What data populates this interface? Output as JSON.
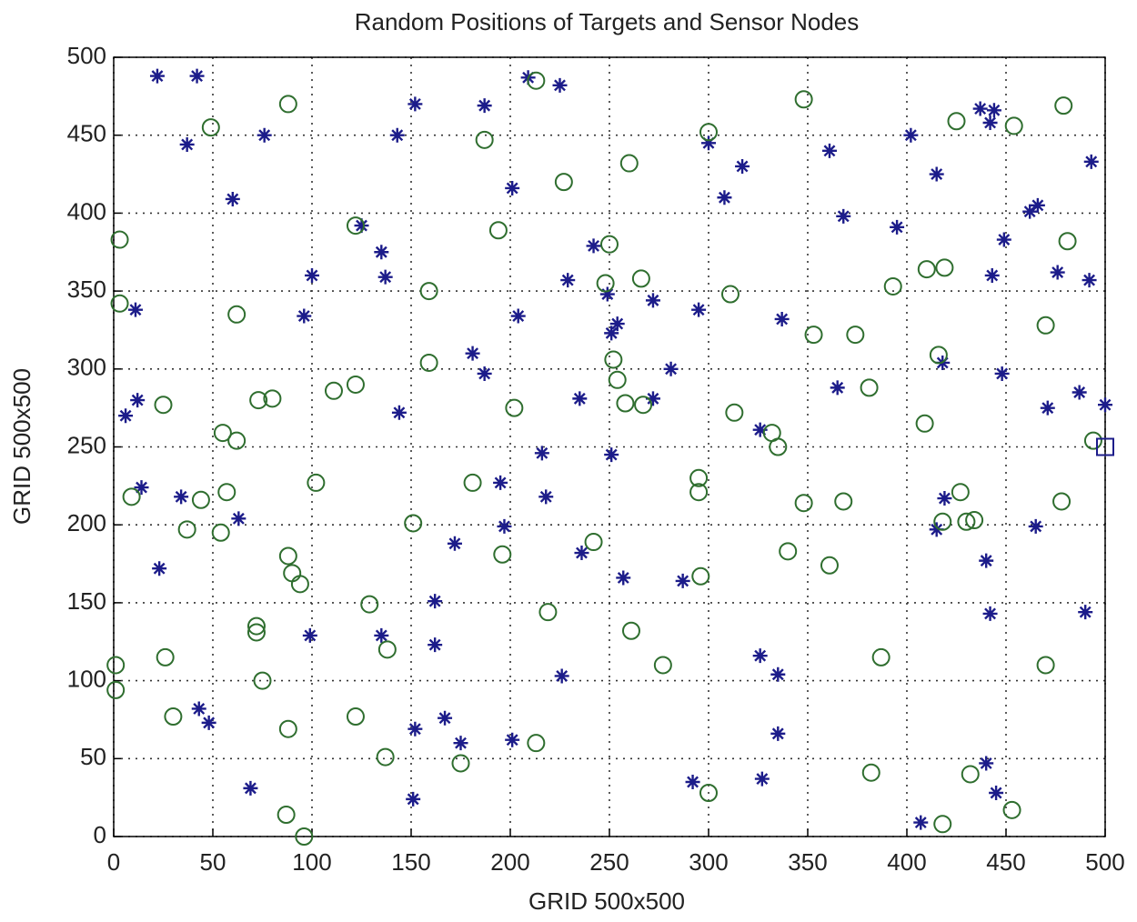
{
  "chart_data": {
    "type": "scatter",
    "title": "Random Positions of Targets and Sensor Nodes",
    "xlabel": "GRID 500x500",
    "ylabel": "GRID 500x500",
    "xlim": [
      0,
      500
    ],
    "ylim": [
      0,
      500
    ],
    "xticks": [
      0,
      50,
      100,
      150,
      200,
      250,
      300,
      350,
      400,
      450,
      500
    ],
    "yticks": [
      0,
      50,
      100,
      150,
      200,
      250,
      300,
      350,
      400,
      450,
      500
    ],
    "grid": true,
    "series": [
      {
        "marker": "asterisk",
        "color": "#1c1c8a",
        "x": [
          22,
          42,
          37,
          76,
          60,
          152,
          187,
          143,
          209,
          225,
          300,
          317,
          308,
          361,
          402,
          415,
          437,
          444,
          442,
          493,
          466,
          462,
          201,
          125,
          135,
          137,
          100,
          96,
          11,
          242,
          229,
          249,
          254,
          251,
          272,
          295,
          204,
          337,
          368,
          395,
          449,
          443,
          476,
          492,
          487,
          500,
          471,
          448,
          418,
          365,
          281,
          181,
          187,
          235,
          272,
          144,
          12,
          6,
          251,
          216,
          326,
          14,
          34,
          63,
          218,
          195,
          197,
          419,
          415,
          465,
          172,
          236,
          257,
          287,
          23,
          162,
          440,
          442,
          490,
          99,
          135,
          162,
          226,
          326,
          335,
          43,
          48,
          152,
          167,
          175,
          201,
          335,
          69,
          151,
          292,
          327,
          407,
          440,
          445
        ],
        "values": [
          488,
          488,
          444,
          450,
          409,
          470,
          469,
          450,
          487,
          482,
          445,
          430,
          410,
          440,
          450,
          425,
          467,
          466,
          458,
          433,
          405,
          401,
          416,
          392,
          375,
          359,
          360,
          334,
          338,
          379,
          357,
          348,
          329,
          323,
          344,
          338,
          334,
          332,
          398,
          391,
          383,
          360,
          362,
          357,
          285,
          277,
          275,
          297,
          304,
          288,
          300,
          310,
          297,
          281,
          281,
          272,
          280,
          270,
          245,
          246,
          261,
          224,
          218,
          204,
          218,
          227,
          199,
          217,
          197,
          199,
          188,
          182,
          166,
          164,
          172,
          151,
          177,
          143,
          144,
          129,
          129,
          123,
          103,
          116,
          104,
          82,
          73,
          69,
          76,
          60,
          62,
          66,
          31,
          24,
          35,
          37,
          9,
          47,
          28
        ]
      },
      {
        "marker": "circle",
        "color": "#2f6e2f",
        "x": [
          88,
          49,
          187,
          213,
          300,
          260,
          227,
          348,
          425,
          454,
          479,
          3,
          3,
          62,
          122,
          194,
          159,
          250,
          248,
          266,
          311,
          410,
          419,
          393,
          470,
          481,
          353,
          374,
          416,
          252,
          254,
          258,
          267,
          202,
          159,
          111,
          122,
          73,
          80,
          25,
          313,
          381,
          409,
          332,
          335,
          494,
          55,
          62,
          102,
          181,
          9,
          44,
          57,
          37,
          54,
          295,
          295,
          348,
          368,
          427,
          418,
          430,
          434,
          478,
          151,
          242,
          196,
          340,
          361,
          88,
          90,
          94,
          129,
          219,
          261,
          296,
          72,
          72,
          26,
          1,
          1,
          138,
          75,
          277,
          387,
          470,
          30,
          88,
          122,
          137,
          175,
          213,
          300,
          382,
          432,
          453,
          87,
          96,
          418
        ],
        "values": [
          470,
          455,
          447,
          485,
          452,
          432,
          420,
          473,
          459,
          456,
          469,
          383,
          342,
          335,
          392,
          389,
          350,
          380,
          355,
          358,
          348,
          364,
          365,
          353,
          328,
          382,
          322,
          322,
          309,
          306,
          293,
          278,
          277,
          275,
          304,
          286,
          290,
          280,
          281,
          277,
          272,
          288,
          265,
          259,
          250,
          254,
          259,
          254,
          227,
          227,
          218,
          216,
          221,
          197,
          195,
          230,
          221,
          214,
          215,
          221,
          202,
          202,
          203,
          215,
          201,
          189,
          181,
          183,
          174,
          180,
          169,
          162,
          149,
          144,
          132,
          167,
          135,
          131,
          115,
          110,
          94,
          120,
          100,
          110,
          115,
          110,
          77,
          69,
          77,
          51,
          47,
          60,
          28,
          41,
          40,
          17,
          14,
          0,
          8
        ]
      },
      {
        "marker": "square",
        "color": "#1c1c8a",
        "x": [
          500
        ],
        "values": [
          250
        ]
      }
    ]
  }
}
